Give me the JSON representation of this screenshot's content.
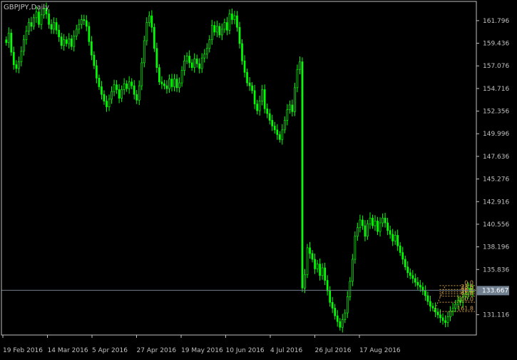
{
  "window": {
    "title": "GBPJPY,Daily"
  },
  "colors": {
    "background": "#000000",
    "candle": "#00ff00",
    "axis_text": "#c0c0c0",
    "frame": "#c0c0c0",
    "fibo": "#d4a04a",
    "bid_line": "#708090",
    "price_tag_bg": "#708090",
    "price_tag_text": "#ffffff"
  },
  "price_tag": "133.667",
  "chart_data": {
    "type": "candlestick",
    "symbol": "GBPJPY",
    "timeframe": "Daily",
    "ylim": [
      129.0,
      163.8
    ],
    "y_ticks": [
      "161.796",
      "159.436",
      "157.076",
      "154.716",
      "152.356",
      "149.996",
      "147.636",
      "145.276",
      "142.916",
      "140.556",
      "138.196",
      "135.836",
      "131.116"
    ],
    "x_ticks": [
      "19 Feb 2016",
      "14 Mar 2016",
      "5 Apr 2016",
      "27 Apr 2016",
      "19 May 2016",
      "10 Jun 2016",
      "4 Jul 2016",
      "26 Jul 2016",
      "17 Aug 2016"
    ],
    "current_price": 133.667,
    "closes": [
      159.5,
      160.5,
      158.5,
      157.2,
      156.8,
      157.5,
      158.6,
      159.8,
      160.7,
      161.6,
      161.2,
      162.1,
      162.7,
      161.4,
      162.4,
      163.1,
      162.5,
      161.4,
      160.9,
      161.6,
      160.8,
      160.1,
      159.2,
      159.8,
      159.4,
      159.9,
      159.1,
      160.2,
      160.9,
      161.4,
      161.9,
      161.8,
      161.2,
      159.6,
      158.2,
      157.1,
      155.8,
      154.9,
      154.1,
      153.4,
      152.8,
      153.6,
      154.4,
      155.1,
      154.6,
      153.7,
      154.6,
      155.2,
      154.7,
      155.4,
      155.0,
      154.1,
      153.5,
      155.0,
      157.4,
      159.7,
      161.6,
      162.3,
      161.1,
      158.9,
      156.9,
      155.4,
      155.2,
      155.0,
      154.7,
      155.7,
      154.9,
      155.7,
      154.8,
      155.3,
      156.6,
      157.6,
      158.1,
      157.4,
      156.9,
      157.8,
      157.3,
      156.8,
      157.9,
      158.3,
      158.9,
      159.8,
      161.3,
      160.6,
      161.2,
      160.3,
      160.9,
      161.6,
      160.8,
      162.5,
      161.9,
      162.3,
      161.1,
      159.4,
      157.6,
      156.4,
      155.3,
      155.0,
      154.5,
      153.1,
      152.4,
      153.4,
      154.6,
      152.6,
      152.1,
      151.4,
      150.8,
      150.4,
      149.9,
      149.4,
      150.4,
      151.4,
      152.5,
      153.0,
      152.3,
      154.8,
      156.7,
      157.5,
      133.9,
      135.3,
      138.1,
      137.5,
      136.9,
      135.9,
      136.4,
      135.2,
      136.0,
      134.7,
      133.6,
      132.4,
      131.8,
      131.0,
      130.4,
      129.8,
      130.6,
      131.3,
      133.0,
      134.6,
      136.9,
      139.3,
      140.2,
      141.0,
      140.4,
      139.3,
      140.6,
      141.2,
      140.4,
      140.9,
      139.8,
      140.7,
      141.2,
      140.7,
      139.9,
      139.5,
      138.8,
      139.4,
      138.3,
      137.6,
      136.9,
      136.1,
      135.5,
      135.2,
      134.9,
      134.5,
      134.2,
      134.0,
      133.6,
      133.1,
      132.5,
      132.0,
      131.8,
      131.4,
      131.1,
      130.8,
      130.5,
      130.3,
      130.9,
      131.5,
      131.8,
      132.2,
      132.6,
      132.4,
      133.0,
      133.3,
      133.9,
      133.5,
      133.667
    ],
    "fibonacci": {
      "levels": [
        {
          "label": "0.0",
          "price": 134.15
        },
        {
          "label": "23.6",
          "price": 133.75
        },
        {
          "label": "38.2",
          "price": 133.5
        },
        {
          "label": "50.0",
          "price": 133.3
        },
        {
          "label": "61.8",
          "price": 133.05
        },
        {
          "label": "100.0",
          "price": 132.42
        },
        {
          "label": "161.8",
          "price": 131.45
        }
      ],
      "start_index": 171
    }
  }
}
